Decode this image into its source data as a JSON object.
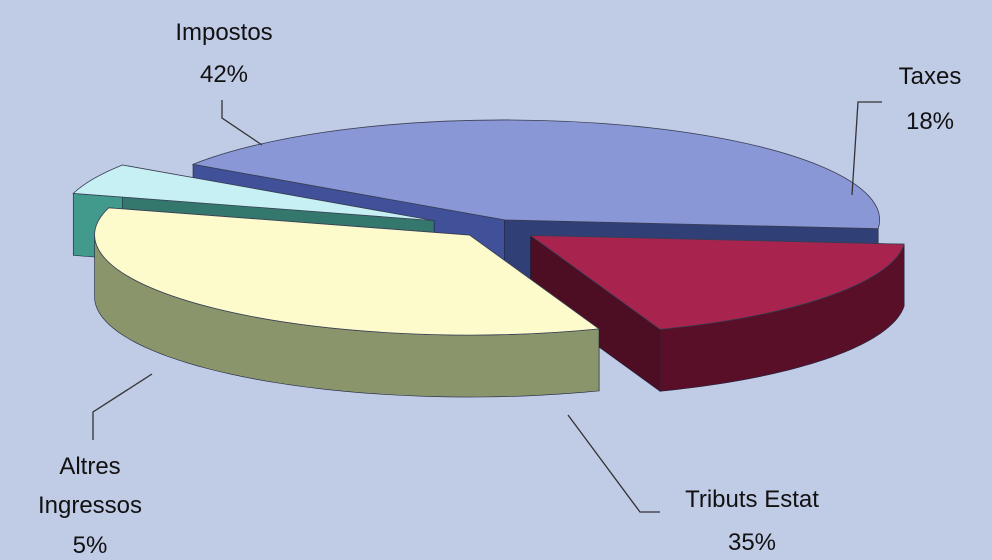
{
  "chart_data": {
    "type": "pie",
    "three_d": true,
    "exploded": true,
    "slices": [
      {
        "name": "Impostos",
        "value": 42,
        "label": "42%",
        "color": "#8a97d6",
        "side_color": "#3a4a8c"
      },
      {
        "name": "Taxes",
        "value": 18,
        "label": "18%",
        "color": "#a8244f",
        "side_color": "#5a0f28"
      },
      {
        "name": "Tributs Estat",
        "value": 35,
        "label": "35%",
        "color": "#fdfbcb",
        "side_color": "#8a956c"
      },
      {
        "name": "Altres Ingressos",
        "value": 5,
        "label": "5%",
        "color": "#c6f0f3",
        "side_color": "#3c8c80"
      }
    ],
    "label_lines": {
      "impostos": "Impostos",
      "taxes": "Taxes",
      "tributs": "Tributs Estat",
      "altres_1": "Altres",
      "altres_2": "Ingressos"
    },
    "background": "#c0cbe6"
  }
}
